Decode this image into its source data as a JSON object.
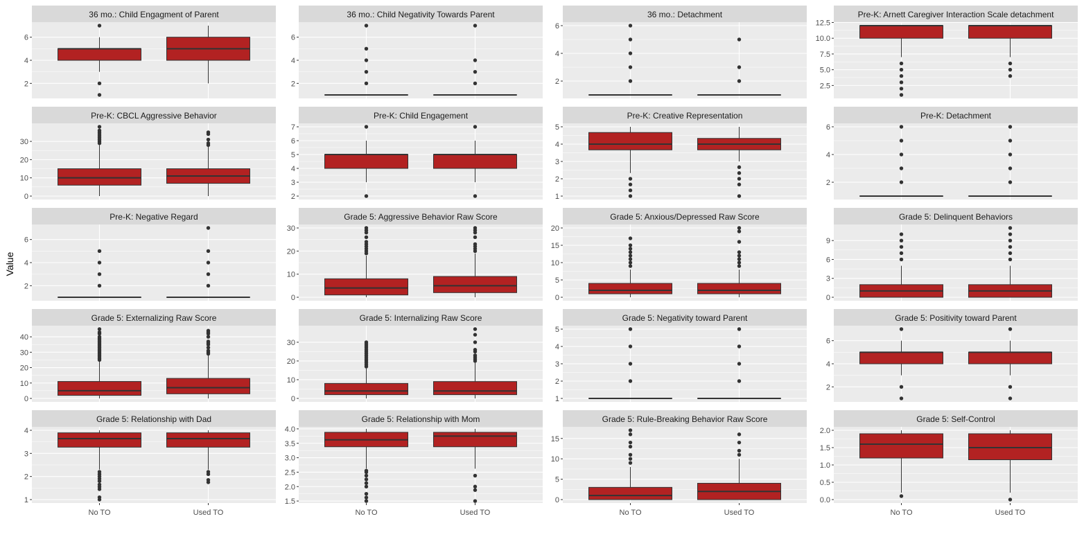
{
  "chart_data": {
    "type": "boxplot",
    "ylabel": "Value",
    "categories": [
      "No TO",
      "Used TO"
    ],
    "colors": {
      "box_fill": "#b22222",
      "box_line": "#333333",
      "panel_bg": "#ebebeb",
      "strip_bg": "#d9d9d9",
      "grid": "#ffffff"
    },
    "panels": [
      {
        "title": "36 mo.: Child Engagment of Parent",
        "ylim": [
          0.7,
          7.3
        ],
        "yticks": [
          2,
          4,
          6
        ],
        "ytick_labels": [
          "2",
          "4",
          "6"
        ],
        "boxes": [
          {
            "category": "No TO",
            "min": 3,
            "q1": 4,
            "median": 5,
            "q3": 5,
            "max": 6,
            "outliers": [
              1,
              2,
              7
            ]
          },
          {
            "category": "Used TO",
            "min": 2,
            "q1": 4,
            "median": 5,
            "q3": 6,
            "max": 7,
            "outliers": []
          }
        ]
      },
      {
        "title": "36 mo.: Child Negativity Towards Parent",
        "ylim": [
          0.7,
          7.3
        ],
        "yticks": [
          2,
          4,
          6
        ],
        "ytick_labels": [
          "2",
          "4",
          "6"
        ],
        "boxes": [
          {
            "category": "No TO",
            "min": 1,
            "q1": 1,
            "median": 1,
            "q3": 1,
            "max": 1,
            "outliers": [
              2,
              3,
              4,
              5,
              7
            ]
          },
          {
            "category": "Used TO",
            "min": 1,
            "q1": 1,
            "median": 1,
            "q3": 1,
            "max": 1,
            "outliers": [
              2,
              3,
              4,
              7
            ]
          }
        ]
      },
      {
        "title": "36 mo.: Detachment",
        "ylim": [
          0.75,
          6.25
        ],
        "yticks": [
          2,
          4,
          6
        ],
        "ytick_labels": [
          "2",
          "4",
          "6"
        ],
        "boxes": [
          {
            "category": "No TO",
            "min": 1,
            "q1": 1,
            "median": 1,
            "q3": 1,
            "max": 1,
            "outliers": [
              2,
              3,
              4,
              5,
              6
            ]
          },
          {
            "category": "Used TO",
            "min": 1,
            "q1": 1,
            "median": 1,
            "q3": 1,
            "max": 1,
            "outliers": [
              2,
              3,
              5
            ]
          }
        ]
      },
      {
        "title": "Pre-K: Arnett Caregiver Interaction Scale detachment",
        "ylim": [
          0.45,
          12.55
        ],
        "yticks": [
          2.5,
          5,
          7.5,
          10,
          12.5
        ],
        "ytick_labels": [
          "2.5",
          "5.0",
          "7.5",
          "10.0",
          "12.5"
        ],
        "boxes": [
          {
            "category": "No TO",
            "min": 7,
            "q1": 10,
            "median": 12,
            "q3": 12,
            "max": 12,
            "outliers": [
              1,
              2,
              3,
              4,
              5,
              6
            ]
          },
          {
            "category": "Used TO",
            "min": 7,
            "q1": 10,
            "median": 12,
            "q3": 12,
            "max": 12,
            "outliers": [
              4,
              5,
              6
            ]
          }
        ]
      },
      {
        "title": "Pre-K: CBCL Aggressive Behavior",
        "ylim": [
          -1.9,
          39.9
        ],
        "yticks": [
          0,
          10,
          20,
          30
        ],
        "ytick_labels": [
          "0",
          "10",
          "20",
          "30"
        ],
        "boxes": [
          {
            "category": "No TO",
            "min": 0,
            "q1": 6,
            "median": 10,
            "q3": 15,
            "max": 28,
            "outliers": [
              29,
              30,
              31,
              32,
              33,
              34,
              35,
              36,
              38
            ]
          },
          {
            "category": "Used TO",
            "min": 0,
            "q1": 7,
            "median": 11,
            "q3": 15,
            "max": 27,
            "outliers": [
              28,
              29,
              31,
              34,
              35
            ]
          }
        ]
      },
      {
        "title": "Pre-K: Child Engagement",
        "ylim": [
          1.75,
          7.25
        ],
        "yticks": [
          2,
          3,
          4,
          5,
          6,
          7
        ],
        "ytick_labels": [
          "2",
          "3",
          "4",
          "5",
          "6",
          "7"
        ],
        "boxes": [
          {
            "category": "No TO",
            "min": 3,
            "q1": 4,
            "median": 5,
            "q3": 5,
            "max": 6,
            "outliers": [
              2,
              7
            ]
          },
          {
            "category": "Used TO",
            "min": 3,
            "q1": 4,
            "median": 5,
            "q3": 5,
            "max": 6,
            "outliers": [
              2,
              7
            ]
          }
        ]
      },
      {
        "title": "Pre-K: Creative Representation",
        "ylim": [
          0.8,
          5.2
        ],
        "yticks": [
          1,
          2,
          3,
          4,
          5
        ],
        "ytick_labels": [
          "1",
          "2",
          "3",
          "4",
          "5"
        ],
        "boxes": [
          {
            "category": "No TO",
            "min": 2.33,
            "q1": 3.67,
            "median": 4,
            "q3": 4.67,
            "max": 5,
            "outliers": [
              1,
              1.33,
              1.67,
              2
            ]
          },
          {
            "category": "Used TO",
            "min": 3,
            "q1": 3.67,
            "median": 4,
            "q3": 4.33,
            "max": 5,
            "outliers": [
              1,
              1.67,
              2,
              2.33,
              2.67
            ]
          }
        ]
      },
      {
        "title": "Pre-K: Detachment",
        "ylim": [
          0.75,
          6.25
        ],
        "yticks": [
          2,
          4,
          6
        ],
        "ytick_labels": [
          "2",
          "4",
          "6"
        ],
        "boxes": [
          {
            "category": "No TO",
            "min": 1,
            "q1": 1,
            "median": 1,
            "q3": 1,
            "max": 1,
            "outliers": [
              2,
              3,
              4,
              5,
              6
            ]
          },
          {
            "category": "Used TO",
            "min": 1,
            "q1": 1,
            "median": 1,
            "q3": 1,
            "max": 1,
            "outliers": [
              2,
              3,
              4,
              5,
              6
            ]
          }
        ]
      },
      {
        "title": "Pre-K: Negative Regard",
        "ylim": [
          0.7,
          7.3
        ],
        "yticks": [
          2,
          4,
          6
        ],
        "ytick_labels": [
          "2",
          "4",
          "6"
        ],
        "boxes": [
          {
            "category": "No TO",
            "min": 1,
            "q1": 1,
            "median": 1,
            "q3": 1,
            "max": 1,
            "outliers": [
              2,
              3,
              4,
              5
            ]
          },
          {
            "category": "Used TO",
            "min": 1,
            "q1": 1,
            "median": 1,
            "q3": 1,
            "max": 1,
            "outliers": [
              2,
              3,
              4,
              5,
              7
            ]
          }
        ]
      },
      {
        "title": "Grade 5: Aggressive Behavior Raw Score",
        "ylim": [
          -1.5,
          31.5
        ],
        "yticks": [
          0,
          10,
          20,
          30
        ],
        "ytick_labels": [
          "0",
          "10",
          "20",
          "30"
        ],
        "boxes": [
          {
            "category": "No TO",
            "min": 0,
            "q1": 1,
            "median": 4,
            "q3": 8,
            "max": 18,
            "outliers": [
              19,
              20,
              21,
              22,
              23,
              24,
              26,
              28,
              29,
              30
            ]
          },
          {
            "category": "Used TO",
            "min": 0,
            "q1": 2,
            "median": 5,
            "q3": 9,
            "max": 19,
            "outliers": [
              20,
              21,
              22,
              23,
              26,
              28,
              29,
              30
            ]
          }
        ]
      },
      {
        "title": "Grade 5: Anxious/Depressed Raw Score",
        "ylim": [
          -1,
          21
        ],
        "yticks": [
          0,
          5,
          10,
          15,
          20
        ],
        "ytick_labels": [
          "0",
          "5",
          "10",
          "15",
          "20"
        ],
        "boxes": [
          {
            "category": "No TO",
            "min": 0,
            "q1": 1,
            "median": 2,
            "q3": 4,
            "max": 8,
            "outliers": [
              9,
              10,
              11,
              12,
              13,
              14,
              15,
              17
            ]
          },
          {
            "category": "Used TO",
            "min": 0,
            "q1": 1,
            "median": 2,
            "q3": 4,
            "max": 8,
            "outliers": [
              9,
              10,
              11,
              12,
              13,
              16,
              19,
              20
            ]
          }
        ]
      },
      {
        "title": "Grade 5: Delinquent Behaviors",
        "ylim": [
          -0.55,
          11.55
        ],
        "yticks": [
          0,
          3,
          6,
          9
        ],
        "ytick_labels": [
          "0",
          "3",
          "6",
          "9"
        ],
        "boxes": [
          {
            "category": "No TO",
            "min": 0,
            "q1": 0,
            "median": 1,
            "q3": 2,
            "max": 5,
            "outliers": [
              6,
              7,
              8,
              9,
              10
            ]
          },
          {
            "category": "Used TO",
            "min": 0,
            "q1": 0,
            "median": 1,
            "q3": 2,
            "max": 5,
            "outliers": [
              6,
              7,
              8,
              9,
              10,
              11
            ]
          }
        ]
      },
      {
        "title": "Grade 5: Externalizing Raw Score",
        "ylim": [
          -2.25,
          47.25
        ],
        "yticks": [
          0,
          10,
          20,
          30,
          40
        ],
        "ytick_labels": [
          "0",
          "10",
          "20",
          "30",
          "40"
        ],
        "boxes": [
          {
            "category": "No TO",
            "min": 0,
            "q1": 2,
            "median": 5,
            "q3": 11,
            "max": 24,
            "outliers": [
              25,
              26,
              27,
              28,
              29,
              30,
              31,
              32,
              33,
              34,
              35,
              36,
              37,
              38,
              39,
              40,
              42,
              43,
              45
            ]
          },
          {
            "category": "Used TO",
            "min": 0,
            "q1": 3,
            "median": 7,
            "q3": 13,
            "max": 28,
            "outliers": [
              29,
              30,
              31,
              33,
              35,
              36,
              37,
              40,
              42,
              43,
              44
            ]
          }
        ]
      },
      {
        "title": "Grade 5: Internalizing Raw Score",
        "ylim": [
          -1.85,
          38.85
        ],
        "yticks": [
          0,
          10,
          20,
          30
        ],
        "ytick_labels": [
          "0",
          "10",
          "20",
          "30"
        ],
        "boxes": [
          {
            "category": "No TO",
            "min": 0,
            "q1": 2,
            "median": 4,
            "q3": 8,
            "max": 16,
            "outliers": [
              17,
              18,
              19,
              20,
              21,
              22,
              23,
              24,
              25,
              26,
              27,
              28,
              29,
              30
            ]
          },
          {
            "category": "Used TO",
            "min": 0,
            "q1": 2,
            "median": 4,
            "q3": 9,
            "max": 19,
            "outliers": [
              20,
              21,
              22,
              23,
              25,
              26,
              30,
              34,
              37
            ]
          }
        ]
      },
      {
        "title": "Grade 5: Negativity toward Parent",
        "ylim": [
          0.8,
          5.2
        ],
        "yticks": [
          1,
          2,
          3,
          4,
          5
        ],
        "ytick_labels": [
          "1",
          "2",
          "3",
          "4",
          "5"
        ],
        "boxes": [
          {
            "category": "No TO",
            "min": 1,
            "q1": 1,
            "median": 1,
            "q3": 1,
            "max": 1,
            "outliers": [
              2,
              3,
              4,
              5
            ]
          },
          {
            "category": "Used TO",
            "min": 1,
            "q1": 1,
            "median": 1,
            "q3": 1,
            "max": 1,
            "outliers": [
              2,
              3,
              4,
              5
            ]
          }
        ]
      },
      {
        "title": "Grade 5: Positivity toward Parent",
        "ylim": [
          0.7,
          7.3
        ],
        "yticks": [
          2,
          4,
          6
        ],
        "ytick_labels": [
          "2",
          "4",
          "6"
        ],
        "boxes": [
          {
            "category": "No TO",
            "min": 3,
            "q1": 4,
            "median": 5,
            "q3": 5,
            "max": 6,
            "outliers": [
              1,
              2,
              7
            ]
          },
          {
            "category": "Used TO",
            "min": 3,
            "q1": 4,
            "median": 5,
            "q3": 5,
            "max": 6,
            "outliers": [
              1,
              2,
              7
            ]
          }
        ]
      },
      {
        "title": "Grade 5: Relationship with Dad",
        "ylim": [
          0.85,
          4.15
        ],
        "yticks": [
          1,
          2,
          3,
          4
        ],
        "ytick_labels": [
          "1",
          "2",
          "3",
          "4"
        ],
        "boxes": [
          {
            "category": "No TO",
            "min": 2.3,
            "q1": 3.27,
            "median": 3.64,
            "q3": 3.89,
            "max": 4,
            "outliers": [
              1,
              1.1,
              1.45,
              1.55,
              1.65,
              1.8,
              1.9,
              2,
              2.1,
              2.2
            ]
          },
          {
            "category": "Used TO",
            "min": 2.3,
            "q1": 3.27,
            "median": 3.64,
            "q3": 3.89,
            "max": 4,
            "outliers": [
              1.75,
              1.85,
              2.1,
              2.2
            ]
          }
        ]
      },
      {
        "title": "Grade 5: Relationship with Mom",
        "ylim": [
          1.43,
          4.07
        ],
        "yticks": [
          1.5,
          2,
          2.5,
          3,
          3.5,
          4
        ],
        "ytick_labels": [
          "1.5",
          "2.0",
          "2.5",
          "3.0",
          "3.5",
          "4.0"
        ],
        "boxes": [
          {
            "category": "No TO",
            "min": 2.62,
            "q1": 3.38,
            "median": 3.62,
            "q3": 3.88,
            "max": 4,
            "outliers": [
              1.5,
              1.62,
              1.75,
              2,
              2.12,
              2.25,
              2.38,
              2.5,
              2.55
            ]
          },
          {
            "category": "Used TO",
            "min": 2.62,
            "q1": 3.38,
            "median": 3.75,
            "q3": 3.88,
            "max": 4,
            "outliers": [
              1.5,
              1.88,
              2,
              2.38
            ]
          }
        ]
      },
      {
        "title": "Grade 5: Rule-Breaking Behavior Raw Score",
        "ylim": [
          -0.85,
          17.85
        ],
        "yticks": [
          0,
          5,
          10,
          15
        ],
        "ytick_labels": [
          "0",
          "5",
          "10",
          "15"
        ],
        "boxes": [
          {
            "category": "No TO",
            "min": 0,
            "q1": 0,
            "median": 1,
            "q3": 3,
            "max": 8,
            "outliers": [
              9,
              10,
              11,
              13,
              14,
              16,
              17
            ]
          },
          {
            "category": "Used TO",
            "min": 0,
            "q1": 0,
            "median": 2,
            "q3": 4,
            "max": 10,
            "outliers": [
              11,
              12,
              14,
              16
            ]
          }
        ]
      },
      {
        "title": "Grade 5: Self-Control",
        "ylim": [
          -0.1,
          2.1
        ],
        "yticks": [
          0,
          0.5,
          1,
          1.5,
          2
        ],
        "ytick_labels": [
          "0.0",
          "0.5",
          "1.0",
          "1.5",
          "2.0"
        ],
        "boxes": [
          {
            "category": "No TO",
            "min": 0.2,
            "q1": 1.2,
            "median": 1.6,
            "q3": 1.9,
            "max": 2,
            "outliers": [
              0.1
            ]
          },
          {
            "category": "Used TO",
            "min": 0.2,
            "q1": 1.15,
            "median": 1.5,
            "q3": 1.9,
            "max": 2,
            "outliers": [
              0
            ]
          }
        ]
      }
    ]
  }
}
